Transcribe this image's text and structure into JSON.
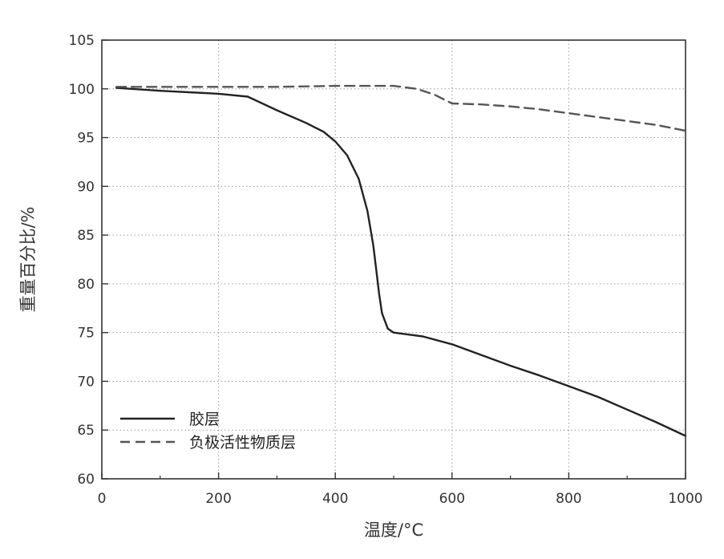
{
  "chart_data": {
    "type": "line",
    "title": "",
    "xlabel": "温度/°C",
    "ylabel": "重量百分比/%",
    "xlim": [
      0,
      1000
    ],
    "ylim": [
      60,
      105
    ],
    "xticks": [
      "0",
      "200",
      "400",
      "600",
      "800",
      "1000"
    ],
    "yticks": [
      "60",
      "65",
      "70",
      "75",
      "80",
      "85",
      "90",
      "95",
      "100",
      "105"
    ],
    "grid": true,
    "legend_position": "bottom-left",
    "series": [
      {
        "name": "胶层",
        "style": "solid",
        "color": "#222222",
        "x": [
          25,
          100,
          200,
          250,
          300,
          350,
          380,
          400,
          420,
          440,
          455,
          465,
          470,
          475,
          480,
          490,
          500,
          550,
          600,
          650,
          700,
          750,
          800,
          850,
          900,
          950,
          1000
        ],
        "y": [
          100.1,
          99.8,
          99.5,
          99.2,
          97.8,
          96.5,
          95.6,
          94.6,
          93.2,
          90.8,
          87.5,
          84.0,
          81.5,
          79.0,
          77.0,
          75.4,
          75.0,
          74.6,
          73.8,
          72.7,
          71.6,
          70.6,
          69.5,
          68.4,
          67.1,
          65.8,
          64.4
        ]
      },
      {
        "name": "负极活性物质层",
        "style": "dashed",
        "color": "#555555",
        "x": [
          25,
          100,
          200,
          300,
          400,
          450,
          500,
          540,
          570,
          600,
          650,
          700,
          750,
          800,
          850,
          900,
          950,
          1000
        ],
        "y": [
          100.2,
          100.2,
          100.2,
          100.2,
          100.3,
          100.3,
          100.3,
          100.0,
          99.4,
          98.5,
          98.4,
          98.2,
          97.9,
          97.5,
          97.1,
          96.7,
          96.3,
          95.7
        ]
      }
    ]
  }
}
